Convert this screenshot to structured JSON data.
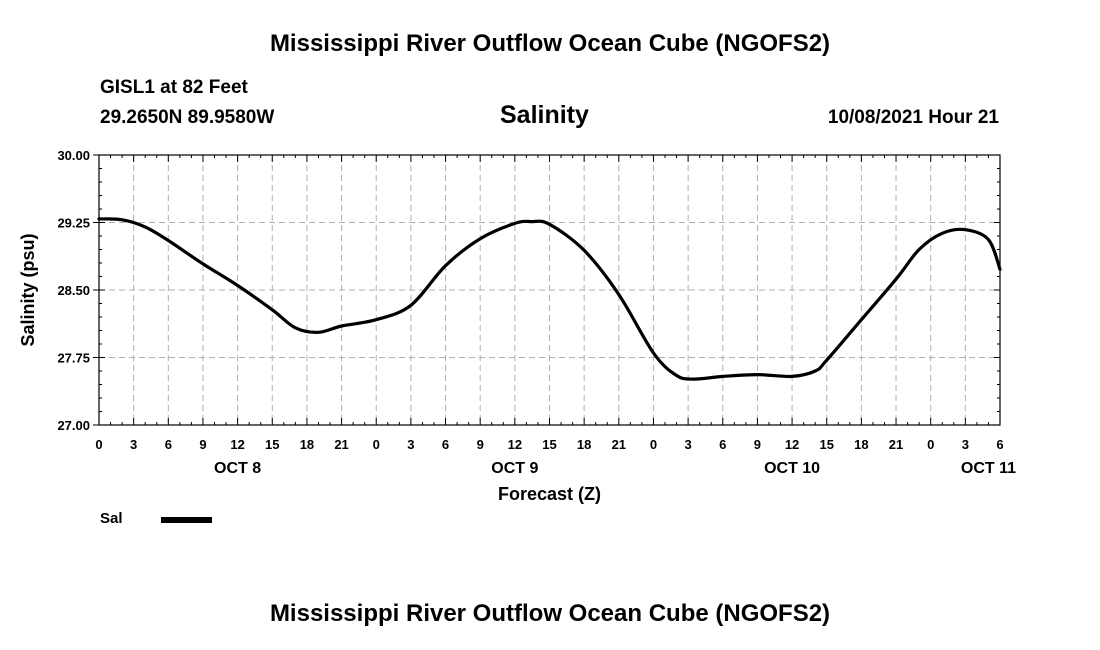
{
  "header": {
    "title": "Mississippi River Outflow Ocean Cube (NGOFS2)",
    "station": "GISL1 at 82 Feet",
    "coords": "29.2650N  89.9580W",
    "variable": "Salinity",
    "datetime": "10/08/2021 Hour 21"
  },
  "footer": {
    "title": "Mississippi River Outflow Ocean Cube (NGOFS2)"
  },
  "legend": {
    "label": "Sal"
  },
  "colors": {
    "line": "#000000",
    "grid": "#b0b0b0",
    "background": "#ffffff"
  },
  "chart_data": {
    "type": "line",
    "title": "Salinity",
    "xlabel": "Forecast (Z)",
    "ylabel": "Salinity (psu)",
    "x_unit": "hours from Oct 8 00Z",
    "xlim": [
      0,
      78
    ],
    "ylim": [
      27.0,
      30.0
    ],
    "yticks": [
      "27.00",
      "27.75",
      "28.50",
      "29.25",
      "30.00"
    ],
    "xtick_labels": [
      "0",
      "3",
      "6",
      "9",
      "12",
      "15",
      "18",
      "21",
      "0",
      "3",
      "6",
      "9",
      "12",
      "15",
      "18",
      "21",
      "0",
      "3",
      "6",
      "9",
      "12",
      "15",
      "18",
      "21",
      "0",
      "3",
      "6"
    ],
    "day_labels": [
      {
        "label": "OCT 8",
        "hour": 12
      },
      {
        "label": "OCT 9",
        "hour": 36
      },
      {
        "label": "OCT 10",
        "hour": 60
      },
      {
        "label": "OCT 11",
        "hour": 77
      }
    ],
    "series": [
      {
        "name": "Sal",
        "x": [
          0,
          2,
          4,
          6,
          9,
          12,
          15,
          17,
          19,
          21,
          24,
          27,
          30,
          33,
          36,
          37.5,
          39,
          42,
          45,
          48,
          50,
          51.5,
          54,
          57,
          60,
          62,
          63,
          66,
          69,
          71,
          73,
          75,
          77,
          78
        ],
        "y": [
          29.29,
          29.28,
          29.2,
          29.05,
          28.79,
          28.55,
          28.28,
          28.08,
          28.03,
          28.1,
          28.17,
          28.33,
          28.77,
          29.07,
          29.24,
          29.26,
          29.23,
          28.94,
          28.45,
          27.8,
          27.55,
          27.51,
          27.54,
          27.56,
          27.54,
          27.6,
          27.72,
          28.17,
          28.62,
          28.95,
          29.13,
          29.17,
          29.06,
          28.73
        ]
      }
    ]
  }
}
